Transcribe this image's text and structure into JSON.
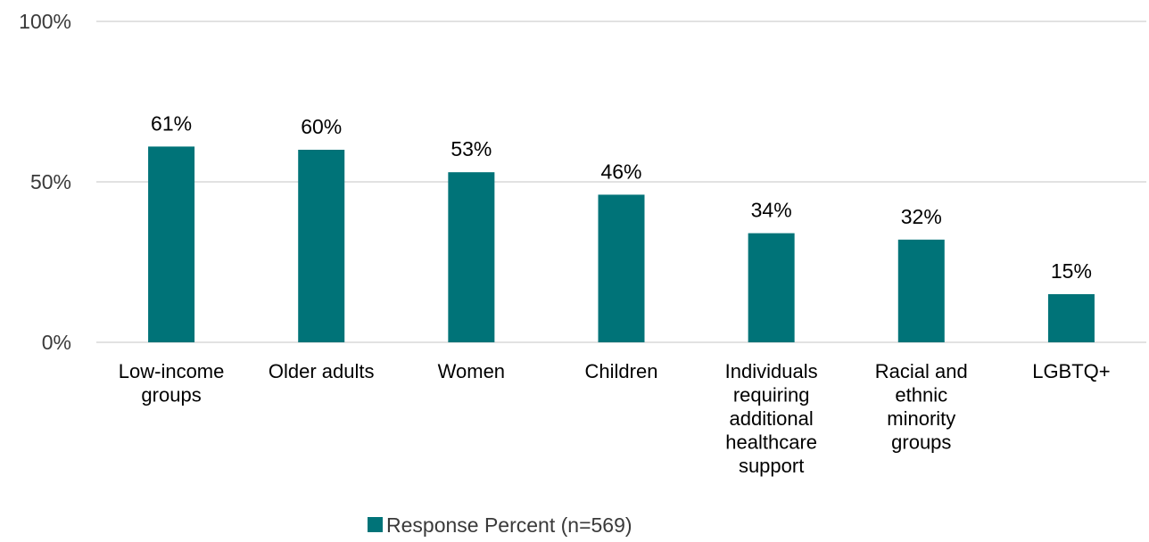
{
  "chart_data": {
    "type": "bar",
    "categories": [
      [
        "Low-income",
        "groups"
      ],
      [
        "Older adults"
      ],
      [
        "Women"
      ],
      [
        "Children"
      ],
      [
        "Individuals",
        "requiring",
        "additional",
        "healthcare",
        "support"
      ],
      [
        "Racial and",
        "ethnic",
        "minority",
        "groups"
      ],
      [
        "LGBTQ+"
      ]
    ],
    "series": [
      {
        "name": "Response Percent (n=569)",
        "values": [
          61,
          60,
          53,
          46,
          34,
          32,
          15
        ],
        "labels": [
          "61%",
          "60%",
          "53%",
          "46%",
          "34%",
          "32%",
          "15%"
        ],
        "color": "#007378"
      }
    ],
    "y_ticks": [
      {
        "value": 0,
        "label": "0%"
      },
      {
        "value": 50,
        "label": "50%"
      },
      {
        "value": 100,
        "label": "100%"
      }
    ],
    "ylim": [
      0,
      100
    ],
    "grid": true,
    "grid_color": "#d9d9d9",
    "legend_position": "bottom"
  }
}
